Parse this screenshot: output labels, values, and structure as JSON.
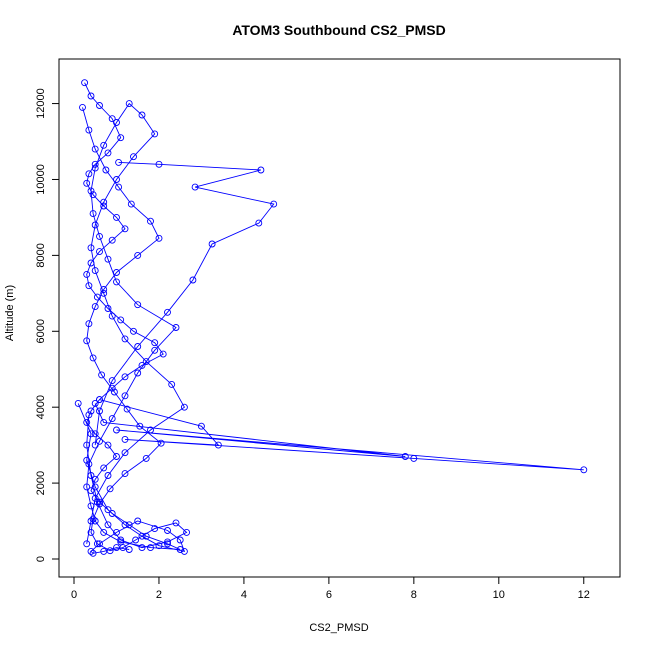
{
  "chart_data": {
    "type": "line",
    "title": "ATOM3 Southbound CS2_PMSD",
    "xlabel": "CS2_PMSD",
    "ylabel": "Altitude (m)",
    "xlim": [
      0,
      12.5
    ],
    "ylim": [
      0,
      12700
    ],
    "xticks": [
      0,
      2,
      4,
      6,
      8,
      10,
      12
    ],
    "yticks": [
      0,
      2000,
      4000,
      6000,
      8000,
      10000,
      12000
    ],
    "series_color": "#0000ff",
    "markers": "open-circle",
    "grid": false,
    "legend": "none",
    "series": [
      {
        "x": [
          0.25,
          0.4,
          0.6,
          0.9,
          1.1,
          0.8,
          0.5,
          0.35,
          0.3,
          0.45,
          0.7,
          1.0,
          1.2,
          0.9,
          0.6,
          0.4,
          0.3,
          0.35,
          0.55,
          0.8,
          1.1,
          1.4,
          1.9,
          2.1,
          1.6,
          1.2,
          0.9,
          0.6,
          0.4,
          0.3,
          0.5,
          0.8,
          1.0,
          0.7,
          0.5,
          0.4,
          0.6,
          0.9,
          1.3,
          1.7,
          2.2,
          2.5,
          1.8,
          1.1,
          0.7,
          0.5,
          0.4,
          0.3,
          0.35,
          0.6,
          0.9,
          1.2,
          1.5,
          1.9,
          2.4,
          1.5,
          1.0,
          0.8,
          0.6,
          0.45,
          0.4,
          0.5,
          0.7,
          1.0,
          1.3,
          1.6,
          1.9,
          1.4,
          1.0,
          0.7,
          0.5,
          0.4,
          0.5,
          0.7,
          0.9,
          1.2,
          1.7,
          2.3,
          2.6,
          1.8,
          1.2,
          0.8,
          0.5,
          0.4,
          0.3
        ],
        "y": [
          12550,
          12200,
          11950,
          11600,
          11100,
          10700,
          10400,
          10150,
          9900,
          9600,
          9300,
          9000,
          8700,
          8400,
          8100,
          7800,
          7500,
          7200,
          6900,
          6600,
          6300,
          6000,
          5700,
          5400,
          5100,
          4800,
          4500,
          4200,
          3900,
          3600,
          3300,
          3000,
          2700,
          2400,
          2100,
          1800,
          1500,
          1200,
          900,
          600,
          400,
          250,
          300,
          450,
          700,
          1000,
          1400,
          1900,
          2500,
          3100,
          3700,
          4300,
          4900,
          5500,
          6100,
          6700,
          7300,
          7900,
          8500,
          9100,
          9700,
          10300,
          10900,
          11500,
          12000,
          11700,
          11200,
          10600,
          10000,
          9400,
          8800,
          8200,
          7600,
          7000,
          6400,
          5800,
          5200,
          4600,
          4000,
          3400,
          2800,
          2200,
          1600,
          1000,
          400
        ]
      },
      {
        "x": [
          0.2,
          0.35,
          0.5,
          0.75,
          1.05,
          1.35,
          1.8,
          2.0,
          1.5,
          1.0,
          0.7,
          0.5,
          0.35,
          0.3,
          0.45,
          0.65,
          0.95,
          1.25,
          1.55,
          2.05,
          1.7,
          1.2,
          0.85,
          0.6,
          0.45,
          0.4,
          0.55,
          0.85,
          1.15,
          1.45,
          1.9,
          2.4,
          2.65,
          2.2,
          1.6,
          1.1,
          0.8,
          0.55,
          0.4,
          0.3,
          0.35
        ],
        "y": [
          11900,
          11300,
          10800,
          10250,
          9800,
          9350,
          8900,
          8450,
          8000,
          7550,
          7100,
          6650,
          6200,
          5750,
          5300,
          4850,
          4400,
          3950,
          3500,
          3050,
          2650,
          2250,
          1850,
          1450,
          1050,
          700,
          400,
          220,
          300,
          500,
          800,
          950,
          700,
          450,
          300,
          500,
          900,
          1500,
          2200,
          3000,
          3800
        ]
      },
      {
        "x": [
          1.05,
          2.0,
          4.4,
          2.85,
          4.7,
          4.35,
          3.25,
          2.8,
          2.2,
          1.5,
          0.9,
          0.6,
          0.5
        ],
        "y": [
          10450,
          10400,
          10250,
          9800,
          9350,
          8850,
          8300,
          7350,
          6500,
          5600,
          4700,
          3900,
          3000
        ]
      },
      {
        "x": [
          0.6,
          3.0,
          3.4,
          1.2,
          8.0,
          12.0,
          1.0,
          7.8,
          0.7,
          0.5
        ],
        "y": [
          4200,
          3500,
          3000,
          3150,
          2650,
          2350,
          3400,
          2700,
          3600,
          4100
        ]
      },
      {
        "x": [
          0.1,
          0.4,
          0.3,
          0.5,
          0.8,
          1.2,
          1.6,
          2.0,
          2.6,
          2.5,
          2.2,
          1.5,
          1.0,
          0.6,
          0.4,
          0.45,
          0.7,
          1.0,
          1.3
        ],
        "y": [
          4100,
          3300,
          2600,
          1900,
          1300,
          900,
          600,
          350,
          200,
          500,
          750,
          1000,
          700,
          400,
          200,
          150,
          200,
          300,
          250
        ]
      }
    ]
  }
}
